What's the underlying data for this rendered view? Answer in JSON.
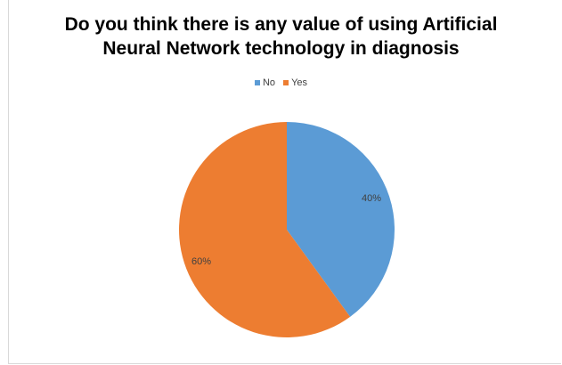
{
  "chart_data": {
    "type": "pie",
    "title_lines": [
      "Do you think there is any value of using Artificial",
      "Neural Network technology in diagnosis"
    ],
    "categories": [
      "No",
      "Yes"
    ],
    "values": [
      40,
      60
    ],
    "labels": [
      "40%",
      "60%"
    ],
    "colors": [
      "#5b9bd5",
      "#ed7d31"
    ],
    "legend_position": "top"
  }
}
